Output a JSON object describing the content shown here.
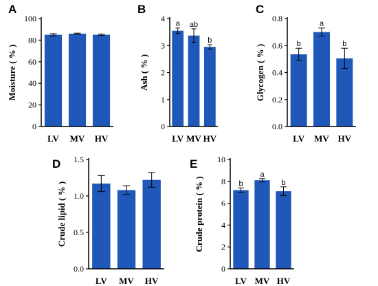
{
  "colors": {
    "bar": "#1f58b8",
    "axis": "#000000",
    "error_bar": "#000000"
  },
  "chart_data": [
    {
      "panel": "A",
      "type": "bar",
      "categories": [
        "LV",
        "MV",
        "HV"
      ],
      "values": [
        85,
        86,
        85
      ],
      "errors": [
        1,
        0.5,
        0.7
      ],
      "significance": [
        "",
        "",
        ""
      ],
      "ylabel": "Moisture ( % )",
      "ylim": [
        0,
        100
      ],
      "yticks": [
        0,
        20,
        40,
        60,
        80,
        100
      ],
      "ytick_labels": [
        "0",
        "20",
        "40",
        "60",
        "80",
        "100"
      ]
    },
    {
      "panel": "B",
      "type": "bar",
      "categories": [
        "LV",
        "MV",
        "HV"
      ],
      "values": [
        3.55,
        3.37,
        2.95
      ],
      "errors": [
        0.1,
        0.25,
        0.08
      ],
      "significance": [
        "a",
        "ab",
        "b"
      ],
      "ylabel": "Ash ( % )",
      "ylim": [
        0,
        4
      ],
      "yticks": [
        0,
        1,
        2,
        3,
        4
      ],
      "ytick_labels": [
        "0",
        "1",
        "2",
        "3",
        "4"
      ]
    },
    {
      "panel": "C",
      "type": "bar",
      "categories": [
        "LV",
        "MV",
        "HV"
      ],
      "values": [
        0.535,
        0.7,
        0.505
      ],
      "errors": [
        0.045,
        0.03,
        0.075
      ],
      "significance": [
        "b",
        "a",
        "b"
      ],
      "ylabel": "Glycogen ( % )",
      "ylim": [
        0,
        0.8
      ],
      "yticks": [
        0,
        0.2,
        0.4,
        0.6,
        0.8
      ],
      "ytick_labels": [
        "0.0",
        "0.2",
        "0.4",
        "0.6",
        "0.8"
      ]
    },
    {
      "panel": "D",
      "type": "bar",
      "categories": [
        "LV",
        "MV",
        "HV"
      ],
      "values": [
        1.17,
        1.08,
        1.22
      ],
      "errors": [
        0.11,
        0.06,
        0.1
      ],
      "significance": [
        "",
        "",
        ""
      ],
      "ylabel": "Crude lipid ( % )",
      "ylim": [
        0,
        1.5
      ],
      "yticks": [
        0,
        0.5,
        1,
        1.5
      ],
      "ytick_labels": [
        "0.0",
        "0.5",
        "1.0",
        "1.5"
      ]
    },
    {
      "panel": "E",
      "type": "bar",
      "categories": [
        "LV",
        "MV",
        "HV"
      ],
      "values": [
        7.2,
        8.1,
        7.1
      ],
      "errors": [
        0.2,
        0.15,
        0.4
      ],
      "significance": [
        "b",
        "a",
        "b"
      ],
      "ylabel": "Crude protein ( % )",
      "ylim": [
        0,
        10
      ],
      "yticks": [
        0,
        2,
        4,
        6,
        8,
        10
      ],
      "ytick_labels": [
        "0",
        "2",
        "4",
        "6",
        "8",
        "10"
      ]
    }
  ]
}
